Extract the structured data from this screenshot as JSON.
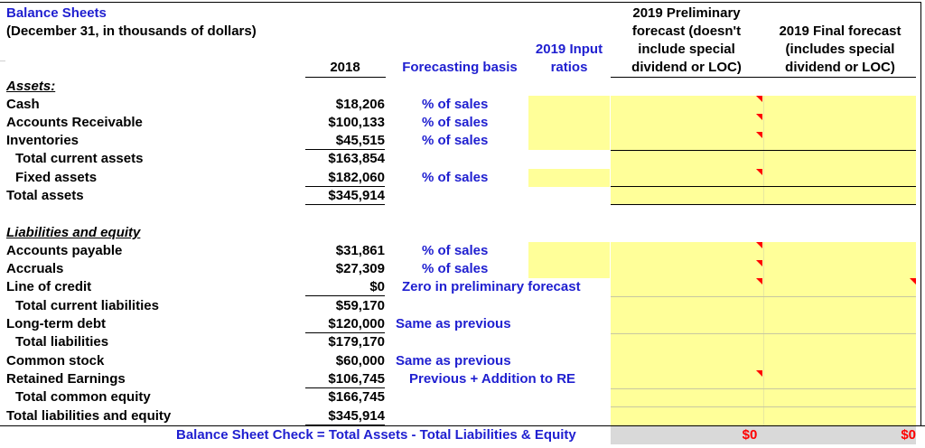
{
  "title": "Balance Sheets",
  "subtitle": "(December 31, in thousands of dollars)",
  "headers": {
    "y2018": "2018",
    "basis": "Forecasting basis",
    "input1": "2019 Input",
    "input2": "ratios",
    "prelim1": "2019 Preliminary",
    "prelim2": "forecast (doesn't",
    "prelim3": "include special",
    "prelim4": "dividend or LOC)",
    "final1": "2019 Final forecast",
    "final2": "(includes special",
    "final3": "dividend or LOC)"
  },
  "assets_heading": "Assets:",
  "liab_heading": "Liabilities and equity",
  "rows": {
    "cash": {
      "label": "Cash",
      "v2018": "$18,206",
      "basis": "% of sales"
    },
    "ar": {
      "label": "Accounts Receivable",
      "v2018": "$100,133",
      "basis": "% of sales"
    },
    "inv": {
      "label": "Inventories",
      "v2018": "$45,515",
      "basis": "% of sales"
    },
    "tca": {
      "label": "Total current assets",
      "v2018": "$163,854"
    },
    "fa": {
      "label": "Fixed assets",
      "v2018": "$182,060",
      "basis": "% of sales"
    },
    "ta": {
      "label": "Total assets",
      "v2018": "$345,914"
    },
    "ap": {
      "label": "Accounts payable",
      "v2018": "$31,861",
      "basis": "% of sales"
    },
    "acc": {
      "label": "Accruals",
      "v2018": "$27,309",
      "basis": "% of sales"
    },
    "loc": {
      "label": "Line of credit",
      "v2018": "$0",
      "basis": "Zero in preliminary forecast"
    },
    "tcl": {
      "label": "Total current liabilities",
      "v2018": "$59,170"
    },
    "ltd": {
      "label": "Long-term debt",
      "v2018": "$120,000",
      "basis": "Same as previous"
    },
    "tl": {
      "label": "Total liabilities",
      "v2018": "$179,170"
    },
    "cs": {
      "label": "Common stock",
      "v2018": "$60,000",
      "basis": "Same as previous"
    },
    "re": {
      "label": "Retained Earnings",
      "v2018": "$106,745",
      "basis": "Previous + Addition to RE"
    },
    "tce": {
      "label": "Total common equity",
      "v2018": "$166,745"
    },
    "tle": {
      "label": "Total liabilities and equity",
      "v2018": "$345,914"
    }
  },
  "check": {
    "label": "Balance Sheet Check = Total Assets - Total Liabilities & Equity",
    "prelim": "$0",
    "final": "$0"
  },
  "colors": {
    "blue_text": "#1f1fd0",
    "input_fill": "#ffff99",
    "check_fill": "#d9d9d9",
    "comment_marker": "#ff0000"
  }
}
